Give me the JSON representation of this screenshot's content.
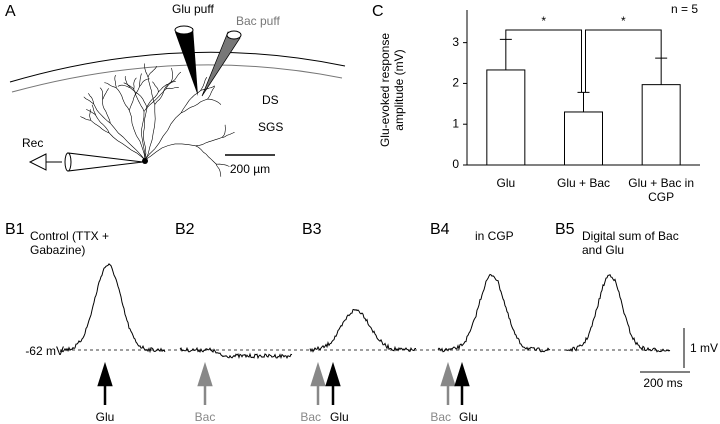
{
  "panel_a": {
    "label": "A",
    "glu_puff": "Glu puff",
    "bac_puff": "Bac puff",
    "ds": "DS",
    "sgs": "SGS",
    "rec": "Rec",
    "scale": "200 µm"
  },
  "chart_data": {
    "type": "bar",
    "panel_label": "C",
    "annotation": "n = 5",
    "ylabel": "Glu-evoked response amplitude (mV)",
    "categories": [
      "Glu",
      "Glu + Bac",
      "Glu + Bac in CGP"
    ],
    "values": [
      2.33,
      1.3,
      1.97
    ],
    "errors": [
      0.75,
      0.48,
      0.65
    ],
    "significance": [
      "*",
      "*"
    ],
    "ylim": [
      0,
      3.8
    ],
    "yticks": [
      0,
      1,
      2,
      3
    ],
    "color": "#ffffff"
  },
  "panel_b": {
    "baseline": "-62 mV",
    "scale_v": "1 mV",
    "scale_t": "200 ms",
    "panels": [
      {
        "label": "B1",
        "title": "Control (TTX + Gabazine)",
        "arrows": [
          {
            "text": "Glu",
            "color": "#000000"
          }
        ]
      },
      {
        "label": "B2",
        "title": null,
        "arrows": [
          {
            "text": "Bac",
            "color": "#888888"
          }
        ]
      },
      {
        "label": "B3",
        "title": null,
        "arrows": [
          {
            "text": "Bac",
            "color": "#888888"
          },
          {
            "text": "Glu",
            "color": "#000000"
          }
        ]
      },
      {
        "label": "B4",
        "title": "in CGP",
        "arrows": [
          {
            "text": "Bac",
            "color": "#888888"
          },
          {
            "text": "Glu",
            "color": "#000000"
          }
        ]
      },
      {
        "label": "B5",
        "title": "Digital sum of Bac and Glu",
        "arrows": []
      }
    ]
  }
}
